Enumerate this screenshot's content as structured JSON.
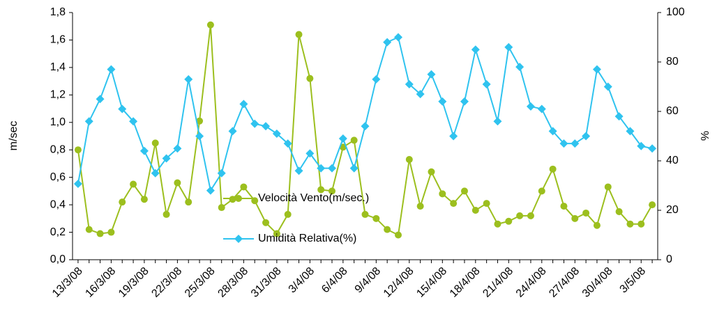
{
  "chart_data": {
    "type": "line",
    "ylabel": "m/sec",
    "y2label": "%",
    "categories": [
      "13/3/08",
      null,
      null,
      "16/3/08",
      null,
      null,
      "19/3/08",
      null,
      null,
      "22/3/08",
      null,
      null,
      "25/3/08",
      null,
      null,
      "28/3/08",
      null,
      null,
      "31/3/08",
      null,
      null,
      "3/4/08",
      null,
      null,
      "6/4/08",
      null,
      null,
      "9/4/08",
      null,
      null,
      "12/4/08",
      null,
      null,
      "15/4/08",
      null,
      null,
      "18/4/08",
      null,
      null,
      "21/4/08",
      null,
      null,
      "24/4/08",
      null,
      null,
      "27/4/08",
      null,
      null,
      "30/4/08",
      null,
      null,
      "3/5/08",
      null
    ],
    "series": [
      {
        "name": "Velocità Vento(m/sec.)",
        "color": "#9cbf1e",
        "marker": "circle",
        "values": [
          0.8,
          0.22,
          0.19,
          0.2,
          0.42,
          0.55,
          0.44,
          0.85,
          0.33,
          0.56,
          0.42,
          1.01,
          1.71,
          0.38,
          0.44,
          0.53,
          0.43,
          0.27,
          0.19,
          0.33,
          1.64,
          1.32,
          0.51,
          0.5,
          0.82,
          0.87,
          0.33,
          0.3,
          0.22,
          0.18,
          0.73,
          0.39,
          0.64,
          0.48,
          0.41,
          0.5,
          0.36,
          0.41,
          0.26,
          0.28,
          0.32,
          0.32,
          0.5,
          0.66,
          0.39,
          0.3,
          0.34,
          0.25,
          0.53,
          0.35,
          0.26,
          0.26,
          0.4
        ]
      },
      {
        "name": "Umidità Relativa(%)",
        "color": "#2fc3ef",
        "marker": "diamond",
        "axis": "y2",
        "values": [
          30.7,
          56,
          65,
          77,
          61,
          56,
          44,
          35,
          41,
          45,
          73,
          50,
          28,
          35,
          52,
          63,
          55,
          54,
          51,
          47,
          36,
          43,
          37,
          37,
          49,
          37,
          54,
          73,
          88,
          90,
          71,
          67,
          75,
          64,
          50,
          64,
          85,
          71,
          56,
          86,
          78,
          62,
          61,
          52,
          47,
          47,
          50,
          77,
          70,
          58,
          52,
          46,
          45
        ]
      }
    ],
    "ylim": [
      0,
      1.8
    ],
    "yticks": [
      {
        "value": 0,
        "label": "0,0"
      },
      {
        "value": 0.2,
        "label": "0,2"
      },
      {
        "value": 0.4,
        "label": "0,4"
      },
      {
        "value": 0.6,
        "label": "0,6"
      },
      {
        "value": 0.8,
        "label": "0,8"
      },
      {
        "value": 1.0,
        "label": "1,0"
      },
      {
        "value": 1.2,
        "label": "1,2"
      },
      {
        "value": 1.4,
        "label": "1,4"
      },
      {
        "value": 1.6,
        "label": "1,6"
      },
      {
        "value": 1.8,
        "label": "1,8"
      }
    ],
    "y2lim": [
      0,
      100
    ],
    "y2ticks": [
      0,
      20,
      40,
      60,
      80,
      100
    ],
    "legend": "center"
  }
}
